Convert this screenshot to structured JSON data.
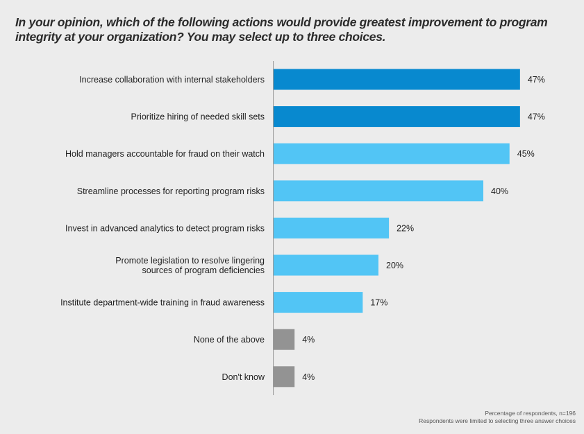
{
  "chart_data": {
    "type": "bar",
    "orientation": "horizontal",
    "title": "In your opinion, which of the following actions would provide greatest improvement to program integrity at your organization? You may select up to three choices.",
    "categories": [
      [
        "Increase collaboration with internal stakeholders"
      ],
      [
        "Prioritize hiring of needed skill sets"
      ],
      [
        "Hold managers accountable for fraud on their watch"
      ],
      [
        "Streamline processes for reporting program risks"
      ],
      [
        "Invest in advanced analytics to detect program risks"
      ],
      [
        "Promote legislation to resolve lingering",
        "sources of program deficiencies"
      ],
      [
        "Institute department-wide training in fraud awareness"
      ],
      [
        "None of the above"
      ],
      [
        "Don't know"
      ]
    ],
    "values": [
      47,
      47,
      45,
      40,
      22,
      20,
      17,
      4,
      4
    ],
    "labels": [
      "47%",
      "47%",
      "45%",
      "40%",
      "22%",
      "20%",
      "17%",
      "4%",
      "4%"
    ],
    "bar_colors": [
      "#0889cf",
      "#0889cf",
      "#52c5f5",
      "#52c5f5",
      "#52c5f5",
      "#52c5f5",
      "#52c5f5",
      "#939393",
      "#939393"
    ],
    "unit": "%",
    "xlim": [
      0,
      50
    ],
    "grid": false,
    "xlabel": "",
    "ylabel": ""
  },
  "footnote": {
    "line1": "Percentage of respondents, n=196",
    "line2": "Respondents were limited to selecting three answer choices"
  }
}
